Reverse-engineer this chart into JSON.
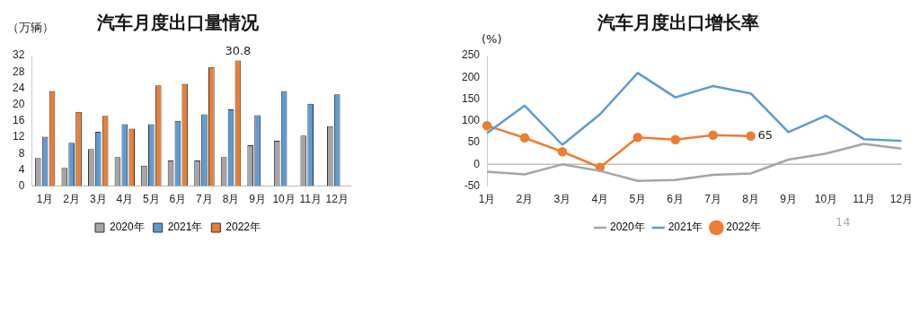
{
  "chart_data": [
    {
      "type": "bar",
      "title": "汽车月度出口量情况",
      "ylabel": "（万辆）",
      "categories": [
        "1月",
        "2月",
        "3月",
        "4月",
        "5月",
        "6月",
        "7月",
        "8月",
        "9月",
        "10月",
        "11月",
        "12月"
      ],
      "series": [
        {
          "name": "2020年",
          "color": "#a5a5a5",
          "values": [
            6.9,
            4.5,
            9.1,
            7.1,
            5.0,
            6.3,
            6.3,
            7.1,
            10.0,
            11.1,
            12.4,
            14.7
          ]
        },
        {
          "name": "2021年",
          "color": "#5b9bd5",
          "values": [
            12.1,
            10.6,
            13.3,
            15.2,
            15.2,
            16.0,
            17.6,
            18.8,
            17.4,
            23.3,
            20.2,
            22.5
          ]
        },
        {
          "name": "2022年",
          "color": "#ed7d31",
          "values": [
            23.3,
            18.2,
            17.2,
            14.1,
            24.7,
            25.1,
            29.2,
            30.8,
            null,
            null,
            null,
            null
          ],
          "value_labels": [
            null,
            null,
            null,
            null,
            null,
            null,
            null,
            "30.8",
            null,
            null,
            null,
            null
          ]
        }
      ],
      "ylim": [
        0,
        32
      ],
      "yticks": [
        0,
        4,
        8,
        12,
        16,
        20,
        24,
        28,
        32
      ],
      "grid": false,
      "legend": "bottom"
    },
    {
      "type": "line",
      "title": "汽车月度出口增长率",
      "ylabel": "(%)",
      "categories": [
        "1月",
        "2月",
        "3月",
        "4月",
        "5月",
        "6月",
        "7月",
        "8月",
        "9月",
        "10月",
        "11月",
        "12月"
      ],
      "series": [
        {
          "name": "2020年",
          "color": "#a5a5a5",
          "marker": "none",
          "values": [
            -17,
            -23,
            0,
            -15,
            -38,
            -36,
            -24,
            -21,
            11,
            25,
            47,
            36
          ]
        },
        {
          "name": "2021年",
          "color": "#5b9bd5",
          "marker": "none",
          "values": [
            72,
            135,
            45,
            115,
            210,
            154,
            180,
            163,
            74,
            112,
            58,
            54
          ]
        },
        {
          "name": "2022年",
          "color": "#ed7d31",
          "marker": "circle",
          "values": [
            89,
            61,
            29,
            -7,
            62,
            57,
            67,
            65,
            null,
            null,
            null,
            null
          ],
          "value_labels": [
            null,
            null,
            null,
            null,
            null,
            null,
            null,
            "65",
            null,
            null,
            null,
            null
          ]
        }
      ],
      "ylim": [
        -50,
        250
      ],
      "yticks": [
        -50,
        0,
        50,
        100,
        150,
        200,
        250
      ],
      "ref_lines": [
        {
          "axis": "y",
          "value": 0,
          "color": "#bfbfbf"
        }
      ],
      "grid": false,
      "legend": "bottom",
      "annotations": [
        "14"
      ]
    }
  ]
}
